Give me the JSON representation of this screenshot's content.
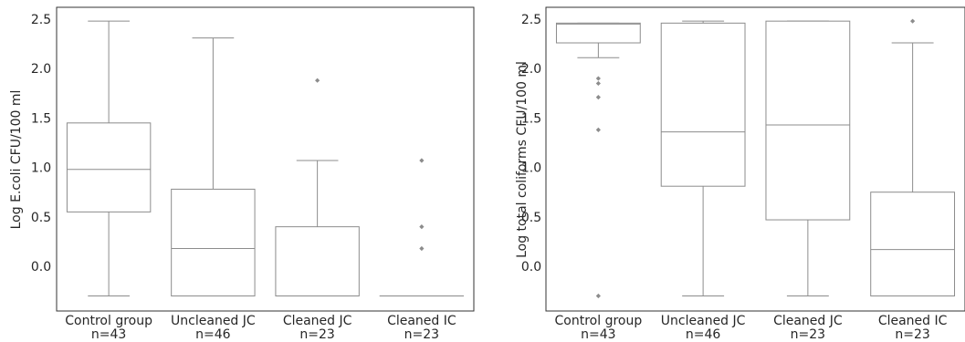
{
  "chart_data": [
    {
      "type": "box",
      "ylabel": "Log E.coli CFU/100 ml",
      "ylim": [
        -0.3,
        2.58
      ],
      "yticks": [
        0.0,
        0.5,
        1.0,
        1.5,
        2.0,
        2.5
      ],
      "ytick_labels": [
        "0.0",
        "0.5",
        "1.0",
        "1.5",
        "2.0",
        "2.5"
      ],
      "categories": [
        "Control group",
        "Uncleaned JC",
        "Cleaned JC",
        "Cleaned IC"
      ],
      "category_counts": [
        "n=43",
        "n=46",
        "n=23",
        "n=23"
      ],
      "boxes": [
        {
          "whisker_low": -0.3,
          "q1": 0.55,
          "median": 0.98,
          "q3": 1.45,
          "whisker_high": 2.48,
          "fliers": []
        },
        {
          "whisker_low": -0.3,
          "q1": -0.3,
          "median": 0.18,
          "q3": 0.78,
          "whisker_high": 2.31,
          "fliers": []
        },
        {
          "whisker_low": -0.3,
          "q1": -0.3,
          "median": -0.3,
          "q3": 0.4,
          "whisker_high": 1.07,
          "fliers": [
            1.88
          ]
        },
        {
          "whisker_low": -0.3,
          "q1": -0.3,
          "median": -0.3,
          "q3": -0.3,
          "whisker_high": -0.3,
          "fliers": [
            1.07,
            0.4,
            0.18
          ]
        }
      ]
    },
    {
      "type": "box",
      "ylabel": "Log total coliforms CFU/100 ml",
      "ylim": [
        -0.3,
        2.58
      ],
      "yticks": [
        0.0,
        0.5,
        1.0,
        1.5,
        2.0,
        2.5
      ],
      "ytick_labels": [
        "0.0",
        "0.5",
        "1.0",
        "1.5",
        "2.0",
        "2.5"
      ],
      "categories": [
        "Control group",
        "Uncleaned JC",
        "Cleaned JC",
        "Cleaned IC"
      ],
      "category_counts": [
        "n=43",
        "n=46",
        "n=23",
        "n=23"
      ],
      "boxes": [
        {
          "whisker_low": 2.11,
          "q1": 2.26,
          "median": 2.45,
          "q3": 2.46,
          "whisker_high": 2.46,
          "fliers": [
            1.9,
            1.85,
            1.71,
            1.38,
            -0.3
          ]
        },
        {
          "whisker_low": -0.3,
          "q1": 0.81,
          "median": 1.36,
          "q3": 2.46,
          "whisker_high": 2.48,
          "fliers": []
        },
        {
          "whisker_low": -0.3,
          "q1": 0.47,
          "median": 1.43,
          "q3": 2.48,
          "whisker_high": 2.48,
          "fliers": []
        },
        {
          "whisker_low": -0.3,
          "q1": -0.3,
          "median": 0.17,
          "q3": 0.75,
          "whisker_high": 2.26,
          "fliers": [
            2.48
          ]
        }
      ]
    }
  ]
}
